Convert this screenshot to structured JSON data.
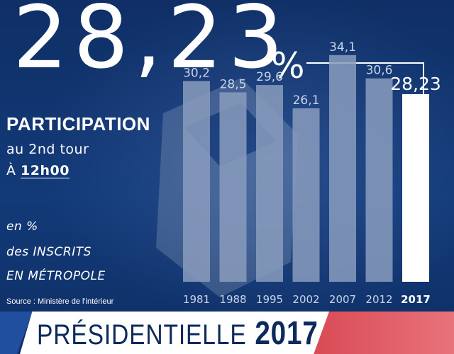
{
  "headline": {
    "value": "28,23",
    "unit": "%"
  },
  "participation_label": "PARTICIPATION",
  "round_label": "au 2nd tour",
  "time_prefix": "À",
  "time_value": "12h00",
  "unit_lines": [
    "en %",
    "des INSCRITS",
    "EN MÉTROPOLE"
  ],
  "source": "Source : Ministère de l'intérieur",
  "banner": {
    "text": "PRÉSIDENTIELLE",
    "year": "2017"
  },
  "colors": {
    "background": "#0f2f66",
    "bar": "#8a9cbd",
    "highlight_bar": "#ffffff",
    "banner_accent": "#d94a55"
  },
  "chart_data": {
    "type": "bar",
    "categories": [
      "1981",
      "1988",
      "1995",
      "2002",
      "2007",
      "2012",
      "2017"
    ],
    "values": [
      30.2,
      28.5,
      29.6,
      26.1,
      34.1,
      30.6,
      28.23
    ],
    "value_labels": [
      "30,2",
      "28,5",
      "29,6",
      "26,1",
      "34,1",
      "30,6",
      "28,23"
    ],
    "highlight_index": 6,
    "title": "",
    "xlabel": "",
    "ylabel": "",
    "ylim": [
      0,
      36
    ],
    "grid": false,
    "legend": "none"
  }
}
